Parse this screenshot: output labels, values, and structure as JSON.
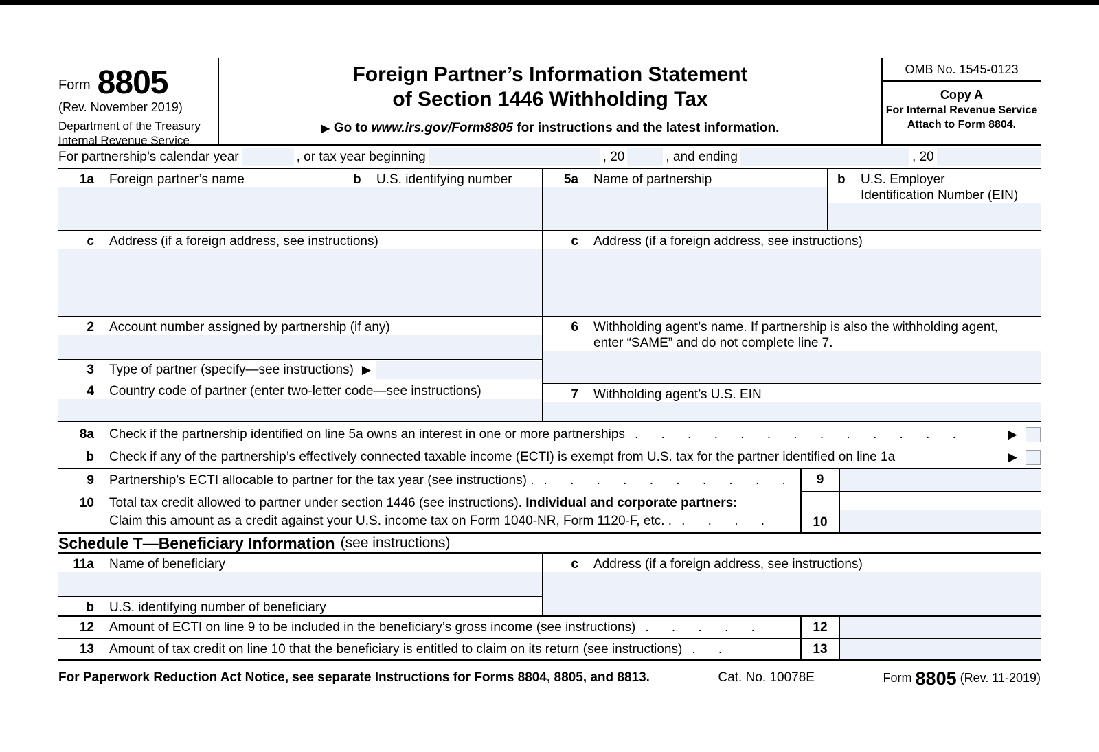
{
  "colors": {
    "field_bg": "#edf1fa",
    "border": "#000000",
    "checkbox_border": "#9aa0ab"
  },
  "header": {
    "form_word": "Form",
    "form_number": "8805",
    "revision": "(Rev. November 2019)",
    "dept_line1": "Department of the Treasury",
    "dept_line2": "Internal Revenue Service",
    "title_line1": "Foreign Partner’s Information Statement",
    "title_line2": "of Section 1446 Withholding Tax",
    "goto_arrow": "▶",
    "goto_before": "Go to ",
    "goto_url": "www.irs.gov/Form8805",
    "goto_after": " for instructions and the latest information.",
    "omb": "OMB No. 1545-0123",
    "copy_a": "Copy A",
    "copy_for": "For Internal Revenue Service",
    "copy_attach": "Attach to Form 8804."
  },
  "tax_year": {
    "seg1": "For partnership’s calendar year",
    "year1_value": "",
    "seg2": ", or tax year beginning",
    "begin_value": "",
    "seg3": ", 20",
    "year2_value": "",
    "seg4": ", and ending",
    "end_value": "",
    "seg5": ", 20",
    "year3_value": ""
  },
  "part1": {
    "l1a_num": "1a",
    "l1a_label": "Foreign partner’s name",
    "l1a_value": "",
    "l1b_num": "b",
    "l1b_label": "U.S. identifying number",
    "l1b_value": "",
    "l1c_num": "c",
    "l1c_label": "Address (if a foreign address, see instructions)",
    "l1c_value": "",
    "l2_num": "2",
    "l2_label": "Account number assigned by partnership (if any)",
    "l2_value": "",
    "l3_num": "3",
    "l3_label": "Type of partner (specify—see instructions)",
    "l3_arrow": "▶",
    "l3_value": "",
    "l4_num": "4",
    "l4_label": "Country code of partner (enter two-letter code—see instructions)",
    "l4_value": "",
    "l5a_num": "5a",
    "l5a_label": "Name of partnership",
    "l5a_value": "",
    "l5b_num": "b",
    "l5b_label1": "U.S. Employer",
    "l5b_label2": "Identification Number (EIN)",
    "l5b_value": "",
    "l5c_num": "c",
    "l5c_label": "Address (if a foreign address, see instructions)",
    "l5c_value": "",
    "l6_num": "6",
    "l6_label1": "Withholding agent’s name. If partnership is also the withholding agent,",
    "l6_label2": "enter “SAME” and do not complete line 7.",
    "l6_value": "",
    "l7_num": "7",
    "l7_label": "Withholding agent’s U.S. EIN",
    "l7_value": "",
    "l8a_num": "8a",
    "l8a_label": "Check if the partnership identified on line 5a owns an interest in one or more partnerships",
    "l8a_leaders": ". . . . . . . . . . . . .",
    "l8a_arrow": "▶",
    "l8a_checked": false,
    "l8b_num": "b",
    "l8b_label": "Check if any of the partnership’s effectively connected taxable income (ECTI) is exempt from U.S. tax for the partner identified on line 1a",
    "l8b_arrow": "▶",
    "l8b_checked": false,
    "l9_num": "9",
    "l9_label": "Partnership’s ECTI allocable to partner for the tax year (see instructions) .",
    "l9_leaders": ". . . . . . . . . . .",
    "l9_box": "9",
    "l9_value": "",
    "l10_num": "10",
    "l10_label_a": "Total tax credit allowed to partner under section 1446 (see instructions). ",
    "l10_label_bold": "Individual and corporate partners:",
    "l10_label_b": "Claim this amount as a credit against your U.S. income tax on Form 1040-NR, Form 1120-F, etc. .",
    "l10_leaders": ". . . .",
    "l10_box": "10",
    "l10_value": ""
  },
  "schedule_t": {
    "title": "Schedule T—Beneficiary Information",
    "subtitle": "(see instructions)",
    "l11a_num": "11a",
    "l11a_label": "Name of beneficiary",
    "l11a_value": "",
    "l11b_num": "b",
    "l11b_label": "U.S. identifying number of beneficiary",
    "l11b_value": "",
    "l11c_num": "c",
    "l11c_label": "Address (if a foreign address, see instructions)",
    "l11c_value": "",
    "l12_num": "12",
    "l12_label": "Amount of ECTI on line 9 to be included in the beneficiary’s gross income (see instructions)",
    "l12_leaders": ". . . . .",
    "l12_box": "12",
    "l12_value": "",
    "l13_num": "13",
    "l13_label": "Amount of tax credit on line 10 that the beneficiary is entitled to claim on its return (see instructions)",
    "l13_leaders": ". .",
    "l13_box": "13",
    "l13_value": ""
  },
  "footer": {
    "notice": "For Paperwork Reduction Act Notice, see separate Instructions for Forms 8804, 8805, and 8813.",
    "cat_no": "Cat. No. 10078E",
    "form_word": "Form",
    "form_number": "8805",
    "revision": "(Rev. 11-2019)"
  }
}
